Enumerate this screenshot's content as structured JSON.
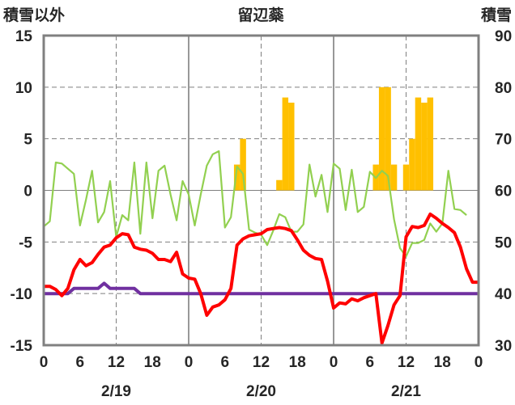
{
  "chart_data": {
    "type": "bar+line",
    "title": "留辺蘂",
    "left_axis_label": "積雪以外",
    "right_axis_label": "積雪",
    "y_left": {
      "min": -15,
      "max": 15,
      "ticks": [
        15,
        10,
        5,
        0,
        -5,
        -10,
        -15
      ]
    },
    "y_right": {
      "min": 30,
      "max": 90,
      "ticks": [
        90,
        80,
        70,
        60,
        50,
        40,
        30
      ]
    },
    "x_hour_ticks": [
      "0",
      "6",
      "12",
      "18",
      "0",
      "6",
      "12",
      "18",
      "0",
      "6",
      "12",
      "18",
      "0"
    ],
    "dates": [
      "2/19",
      "2/20",
      "2/21"
    ],
    "hours_total": 72,
    "colors": {
      "snow_depth": "#ffc000",
      "temperature": "#ff0000",
      "green_series": "#92d050",
      "purple_series": "#7030a0",
      "frame": "#808080"
    },
    "snow_depth_bars": [
      {
        "hour": 32,
        "value": 65
      },
      {
        "hour": 33,
        "value": 70
      },
      {
        "hour": 39,
        "value": 62
      },
      {
        "hour": 40,
        "value": 78
      },
      {
        "hour": 41,
        "value": 77
      },
      {
        "hour": 55,
        "value": 65
      },
      {
        "hour": 56,
        "value": 80
      },
      {
        "hour": 57,
        "value": 80
      },
      {
        "hour": 58,
        "value": 65
      },
      {
        "hour": 60,
        "value": 65
      },
      {
        "hour": 61,
        "value": 70
      },
      {
        "hour": 62,
        "value": 78
      },
      {
        "hour": 63,
        "value": 77
      },
      {
        "hour": 64,
        "value": 78
      }
    ],
    "temperature": [
      -9.3,
      -9.3,
      -9.6,
      -10.2,
      -9.5,
      -7.7,
      -6.7,
      -7.3,
      -7.0,
      -6.2,
      -5.5,
      -5.3,
      -4.6,
      -4.2,
      -4.3,
      -5.5,
      -5.7,
      -5.8,
      -6.1,
      -6.7,
      -6.7,
      -6.9,
      -6.0,
      -8.1,
      -8.5,
      -8.6,
      -10.0,
      -12.1,
      -11.3,
      -11.1,
      -10.6,
      -9.5,
      -5.3,
      -4.7,
      -4.4,
      -4.3,
      -4.2,
      -3.8,
      -3.7,
      -3.6,
      -3.7,
      -3.9,
      -4.8,
      -5.8,
      -6.3,
      -6.6,
      -6.7,
      -8.8,
      -11.4,
      -10.9,
      -11.0,
      -10.5,
      -10.7,
      -10.4,
      -10.2,
      -10.0,
      -14.8,
      -13.1,
      -11.1,
      -10.2,
      -4.5,
      -3.5,
      -3.6,
      -3.4,
      -2.3,
      -2.7,
      -3.2,
      -3.6,
      -4.1,
      -5.5,
      -7.6,
      -8.9,
      -8.9
    ],
    "green_series": [
      -3.5,
      -3.0,
      2.7,
      2.6,
      2.1,
      1.6,
      -3.4,
      -0.9,
      1.9,
      -3.1,
      -2.1,
      0.9,
      -4.5,
      -2.4,
      -2.9,
      2.7,
      -4.2,
      2.7,
      -2.7,
      1.9,
      2.4,
      -0.4,
      -2.9,
      0.9,
      -0.4,
      -3.4,
      -0.4,
      2.4,
      3.5,
      3.8,
      -3.6,
      -2.6,
      2.3,
      1.6,
      -3.8,
      -4.1,
      -4.3,
      -5.3,
      -3.9,
      -2.3,
      -2.6,
      -4.0,
      -4.0,
      -3.3,
      2.5,
      -0.6,
      1.5,
      -2.1,
      2.6,
      2.1,
      -1.9,
      2.0,
      -2.1,
      -1.6,
      1.8,
      1.2,
      1.9,
      1.4,
      -2.8,
      -5.6,
      -6.4,
      -5.1,
      -5.1,
      -4.8,
      -3.2,
      -4.0,
      -3.2,
      1.9,
      -1.8,
      -1.9,
      -2.4
    ],
    "purple_series": [
      -10,
      -10,
      -10,
      -10,
      -10,
      -9.5,
      -9.5,
      -9.5,
      -9.5,
      -9.5,
      -9.0,
      -9.5,
      -9.5,
      -9.5,
      -9.5,
      -9.5,
      -10,
      -10,
      -10,
      -10,
      -10,
      -10,
      -10,
      -10,
      -10,
      -10,
      -10,
      -10,
      -10,
      -10,
      -10,
      -10,
      -10,
      -10,
      -10,
      -10,
      -10,
      -10,
      -10,
      -10,
      -10,
      -10,
      -10,
      -10,
      -10,
      -10,
      -10,
      -10,
      -10,
      -10,
      -10,
      -10,
      -10,
      -10,
      -10,
      -10,
      -10,
      -10,
      -10,
      -10,
      -10,
      -10,
      -10,
      -10,
      -10,
      -10,
      -10,
      -10,
      -10,
      -10,
      -10,
      -10,
      -10
    ]
  }
}
